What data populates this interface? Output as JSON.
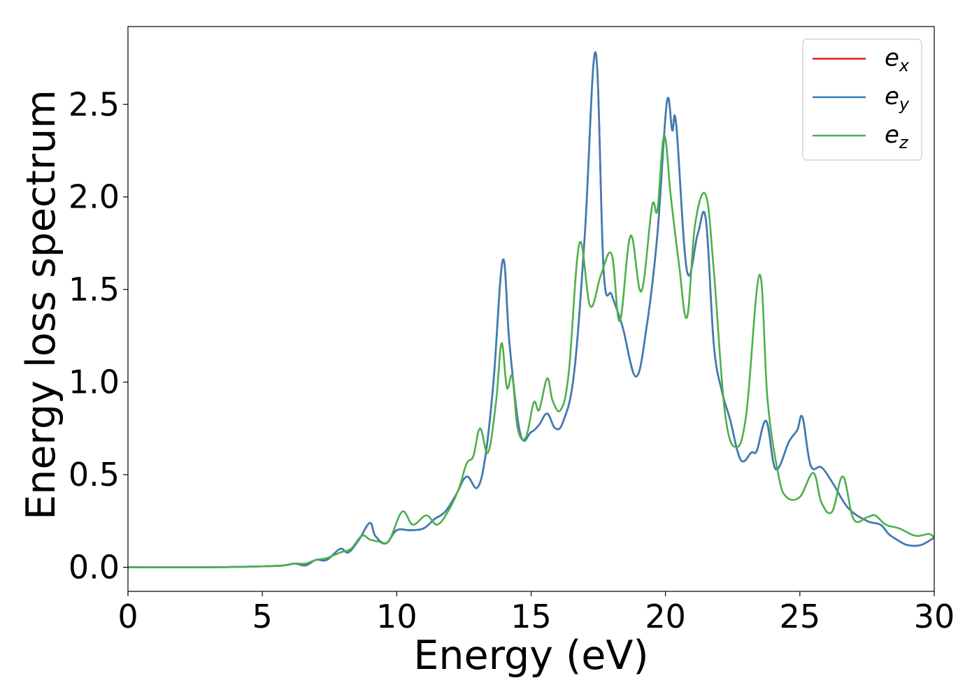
{
  "chart_data": {
    "type": "line",
    "title": "",
    "xlabel": "Energy (eV)",
    "ylabel": "Energy loss spectrum",
    "xlim": [
      0,
      30
    ],
    "ylim": [
      -0.13,
      2.92
    ],
    "xticks": [
      0,
      5,
      10,
      15,
      20,
      25,
      30
    ],
    "xtick_labels": [
      "0",
      "5",
      "10",
      "15",
      "20",
      "25",
      "30"
    ],
    "yticks": [
      0.0,
      0.5,
      1.0,
      1.5,
      2.0,
      2.5
    ],
    "ytick_labels": [
      "0.0",
      "0.5",
      "1.0",
      "1.5",
      "2.0",
      "2.5"
    ],
    "grid": false,
    "legend_position": "top-right",
    "series": [
      {
        "name": "e_x",
        "label_base": "e",
        "label_sub": "x",
        "color": "#e41a1c",
        "x": [
          0,
          3,
          5,
          5.8,
          6.2,
          6.6,
          7.0,
          7.4,
          7.9,
          8.2,
          8.6,
          9.0,
          9.2,
          9.6,
          10.0,
          10.5,
          11.0,
          11.4,
          11.8,
          12.2,
          12.6,
          13.0,
          13.3,
          13.6,
          13.95,
          14.2,
          14.6,
          15.0,
          15.3,
          15.6,
          15.9,
          16.2,
          16.6,
          17.0,
          17.4,
          17.7,
          18.0,
          18.4,
          18.9,
          19.3,
          19.7,
          20.05,
          20.25,
          20.4,
          20.8,
          21.2,
          21.5,
          21.8,
          22.1,
          22.4,
          22.8,
          23.2,
          23.4,
          23.75,
          24.1,
          24.6,
          24.9,
          25.1,
          25.4,
          25.8,
          26.2,
          26.8,
          27.5,
          28.0,
          28.3,
          28.6,
          29.0,
          29.5,
          30.0
        ],
        "y": [
          0.0,
          0.0,
          0.005,
          0.01,
          0.02,
          0.01,
          0.04,
          0.04,
          0.1,
          0.08,
          0.15,
          0.24,
          0.17,
          0.13,
          0.2,
          0.2,
          0.21,
          0.26,
          0.3,
          0.39,
          0.49,
          0.43,
          0.6,
          1.0,
          1.66,
          1.2,
          0.72,
          0.73,
          0.77,
          0.83,
          0.75,
          0.79,
          1.05,
          1.8,
          2.78,
          1.6,
          1.47,
          1.3,
          1.03,
          1.3,
          1.8,
          2.51,
          2.36,
          2.39,
          1.6,
          1.8,
          1.88,
          1.2,
          0.95,
          0.8,
          0.58,
          0.62,
          0.63,
          0.79,
          0.53,
          0.68,
          0.74,
          0.81,
          0.55,
          0.54,
          0.46,
          0.32,
          0.25,
          0.23,
          0.18,
          0.15,
          0.12,
          0.12,
          0.16
        ]
      },
      {
        "name": "e_y",
        "label_base": "e",
        "label_sub": "y",
        "color": "#377eb8",
        "x": [
          0,
          3,
          5,
          5.8,
          6.2,
          6.6,
          7.0,
          7.4,
          7.9,
          8.2,
          8.6,
          9.0,
          9.2,
          9.6,
          10.0,
          10.5,
          11.0,
          11.4,
          11.8,
          12.2,
          12.6,
          13.0,
          13.3,
          13.6,
          13.95,
          14.2,
          14.6,
          15.0,
          15.3,
          15.6,
          15.9,
          16.2,
          16.6,
          17.0,
          17.4,
          17.7,
          18.0,
          18.4,
          18.9,
          19.3,
          19.7,
          20.05,
          20.25,
          20.4,
          20.8,
          21.2,
          21.5,
          21.8,
          22.1,
          22.4,
          22.8,
          23.2,
          23.4,
          23.75,
          24.1,
          24.6,
          24.9,
          25.1,
          25.4,
          25.8,
          26.2,
          26.8,
          27.5,
          28.0,
          28.3,
          28.6,
          29.0,
          29.5,
          30.0
        ],
        "y": [
          0.0,
          0.0,
          0.005,
          0.01,
          0.02,
          0.01,
          0.04,
          0.04,
          0.1,
          0.08,
          0.15,
          0.24,
          0.17,
          0.13,
          0.2,
          0.2,
          0.21,
          0.26,
          0.3,
          0.39,
          0.49,
          0.43,
          0.6,
          1.0,
          1.66,
          1.2,
          0.72,
          0.73,
          0.77,
          0.83,
          0.75,
          0.79,
          1.05,
          1.8,
          2.78,
          1.6,
          1.47,
          1.3,
          1.03,
          1.3,
          1.8,
          2.51,
          2.36,
          2.39,
          1.6,
          1.8,
          1.88,
          1.2,
          0.95,
          0.8,
          0.58,
          0.62,
          0.63,
          0.79,
          0.53,
          0.68,
          0.74,
          0.81,
          0.55,
          0.54,
          0.46,
          0.32,
          0.25,
          0.23,
          0.18,
          0.15,
          0.12,
          0.12,
          0.16
        ]
      },
      {
        "name": "e_z",
        "label_base": "e",
        "label_sub": "z",
        "color": "#4daf4a",
        "x": [
          0,
          3,
          5,
          5.8,
          6.2,
          6.6,
          7.0,
          7.4,
          7.9,
          8.3,
          8.7,
          9.0,
          9.3,
          9.7,
          10.2,
          10.6,
          11.1,
          11.5,
          11.9,
          12.3,
          12.6,
          12.85,
          13.1,
          13.4,
          13.7,
          13.9,
          14.1,
          14.3,
          14.5,
          14.8,
          15.1,
          15.3,
          15.6,
          15.8,
          16.1,
          16.4,
          16.8,
          17.2,
          17.6,
          18.0,
          18.3,
          18.7,
          19.1,
          19.5,
          19.7,
          19.95,
          20.2,
          20.5,
          20.8,
          21.1,
          21.5,
          21.8,
          22.2,
          22.6,
          23.0,
          23.5,
          23.8,
          24.2,
          24.5,
          25.0,
          25.5,
          25.8,
          26.2,
          26.6,
          27.0,
          27.5,
          27.8,
          28.2,
          28.7,
          29.3,
          29.8,
          30.0
        ],
        "y": [
          0.0,
          0.0,
          0.005,
          0.01,
          0.02,
          0.02,
          0.04,
          0.05,
          0.08,
          0.1,
          0.17,
          0.15,
          0.14,
          0.14,
          0.3,
          0.23,
          0.28,
          0.23,
          0.3,
          0.42,
          0.56,
          0.6,
          0.75,
          0.62,
          0.9,
          1.21,
          0.97,
          1.03,
          0.75,
          0.7,
          0.89,
          0.85,
          1.02,
          0.9,
          0.85,
          1.05,
          1.75,
          1.41,
          1.58,
          1.69,
          1.33,
          1.79,
          1.49,
          1.95,
          1.93,
          2.33,
          2.0,
          1.64,
          1.35,
          1.85,
          2.01,
          1.6,
          0.85,
          0.65,
          0.82,
          1.58,
          0.9,
          0.5,
          0.38,
          0.38,
          0.51,
          0.35,
          0.3,
          0.49,
          0.26,
          0.27,
          0.28,
          0.23,
          0.21,
          0.17,
          0.18,
          0.16
        ]
      }
    ]
  }
}
